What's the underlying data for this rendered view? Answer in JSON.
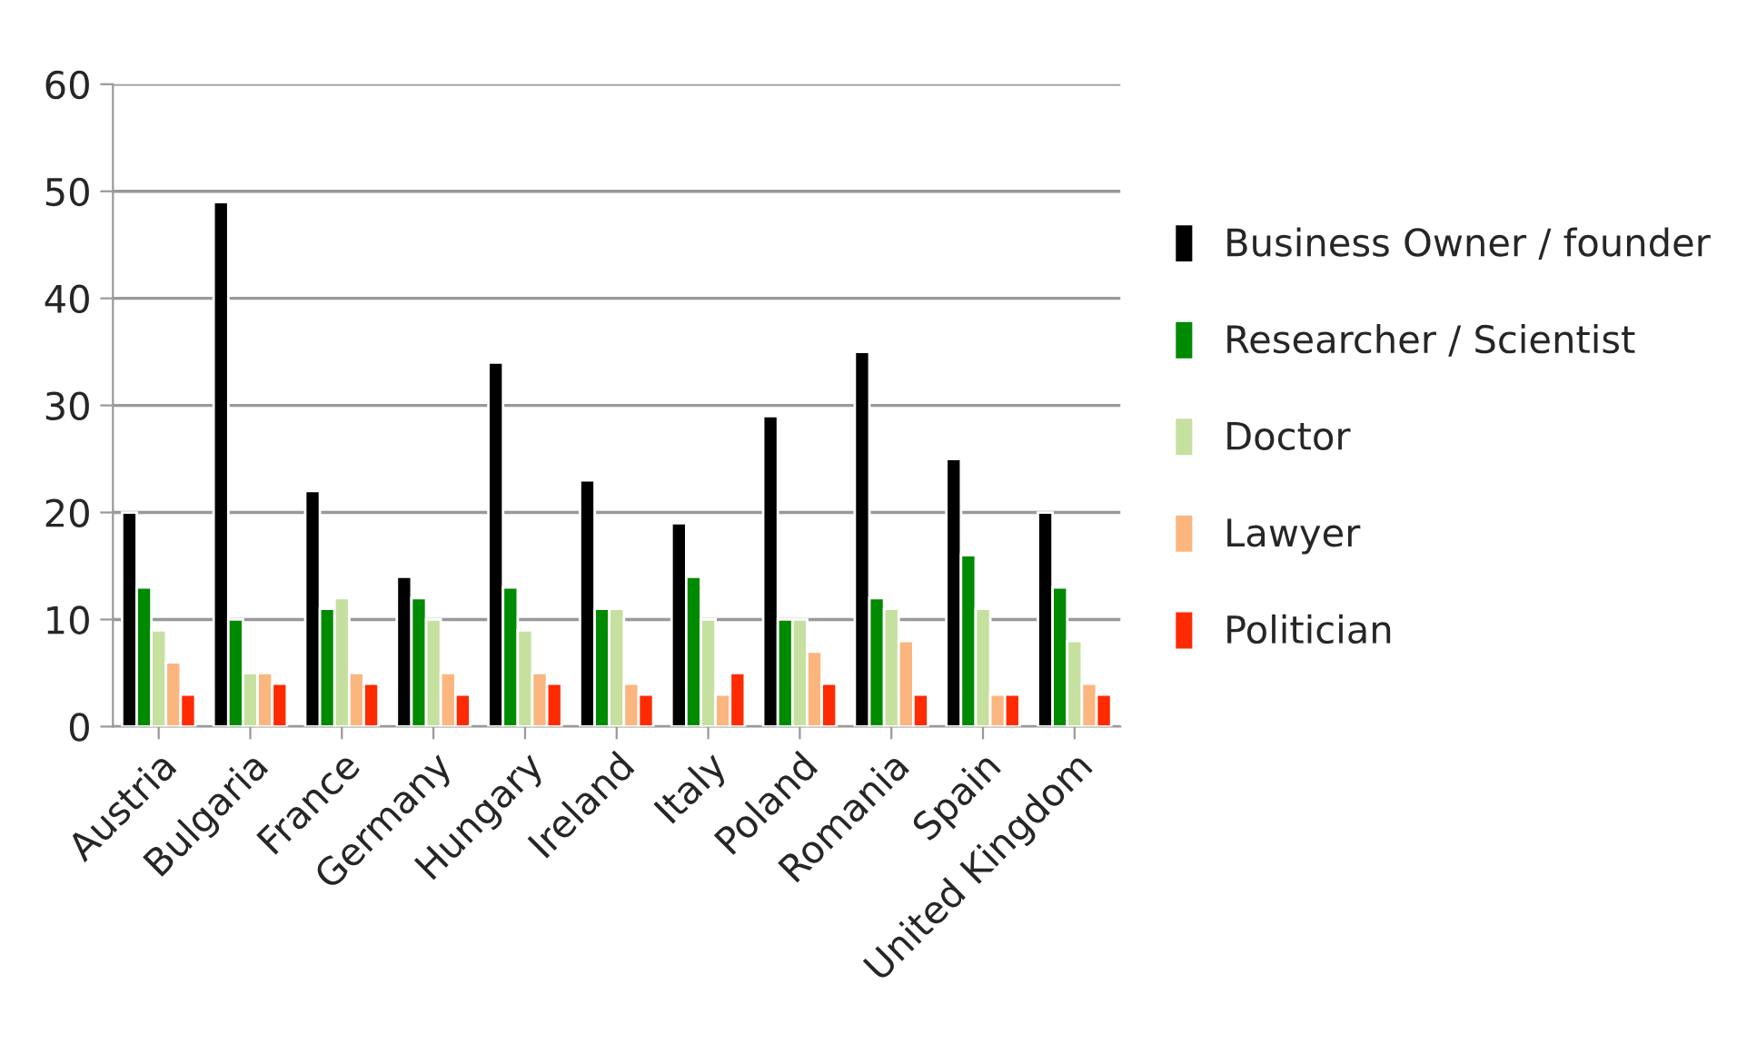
{
  "chart_data": {
    "type": "bar",
    "categories": [
      "Austria",
      "Bulgaria",
      "France",
      "Germany",
      "Hungary",
      "Ireland",
      "Italy",
      "Poland",
      "Romania",
      "Spain",
      "United Kingdom"
    ],
    "series": [
      {
        "name": "Business Owner / founder",
        "color": "#000000",
        "values": [
          20,
          49,
          22,
          14,
          34,
          23,
          19,
          29,
          35,
          25,
          20
        ]
      },
      {
        "name": "Researcher / Scientist",
        "color": "#008a00",
        "values": [
          13,
          10,
          11,
          12,
          13,
          11,
          14,
          10,
          12,
          16,
          13
        ]
      },
      {
        "name": "Doctor",
        "color": "#c6e0a0",
        "values": [
          9,
          5,
          12,
          10,
          9,
          11,
          10,
          10,
          11,
          11,
          8
        ]
      },
      {
        "name": "Lawyer",
        "color": "#fbb57f",
        "values": [
          6,
          5,
          5,
          5,
          5,
          4,
          3,
          7,
          8,
          3,
          4
        ]
      },
      {
        "name": "Politician",
        "color": "#ff2a00",
        "values": [
          3,
          4,
          4,
          3,
          4,
          3,
          5,
          4,
          3,
          3,
          3
        ]
      }
    ],
    "ylim": [
      0,
      60
    ],
    "yticks": [
      0,
      10,
      20,
      30,
      40,
      50,
      60
    ],
    "grid": "y",
    "legend": "right"
  }
}
